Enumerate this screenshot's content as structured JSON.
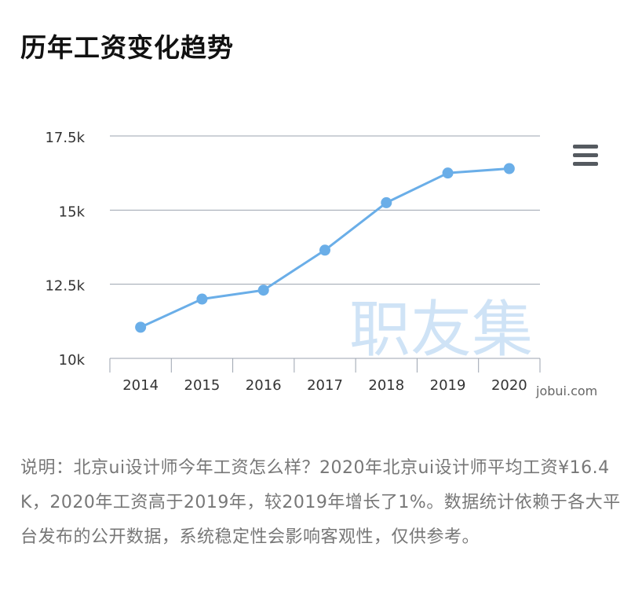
{
  "page": {
    "title": "历年工资变化趋势",
    "menu_icon": "hamburger-menu-icon",
    "watermark_text": "职友集",
    "watermark_url": "jobui.com",
    "description": "说明：北京ui设计师今年工资怎么样？2020年北京ui设计师平均工资¥16.4K，2020年工资高于2019年，较2019年增长了1%。数据统计依赖于各大平台发布的公开数据，系统稳定性会影响客观性，仅供参考。"
  },
  "colors": {
    "line": "#6aaee8",
    "point": "#6aaee8",
    "grid": "#9ba3af",
    "axis_text": "#333333",
    "watermark": "#cfe3f6"
  },
  "chart_data": {
    "type": "line",
    "categories": [
      "2014",
      "2015",
      "2016",
      "2017",
      "2018",
      "2019",
      "2020"
    ],
    "series": [
      {
        "values": [
          11050,
          12000,
          12300,
          13650,
          15250,
          16250,
          16400
        ]
      }
    ],
    "ylim": [
      10000,
      17500
    ],
    "yticks": [
      10000,
      12500,
      15000,
      17500
    ],
    "ytick_labels": [
      "10k",
      "12.5k",
      "15k",
      "17.5k"
    ],
    "title": "",
    "xlabel": "",
    "ylabel": "",
    "grid": true,
    "legend": "none"
  }
}
